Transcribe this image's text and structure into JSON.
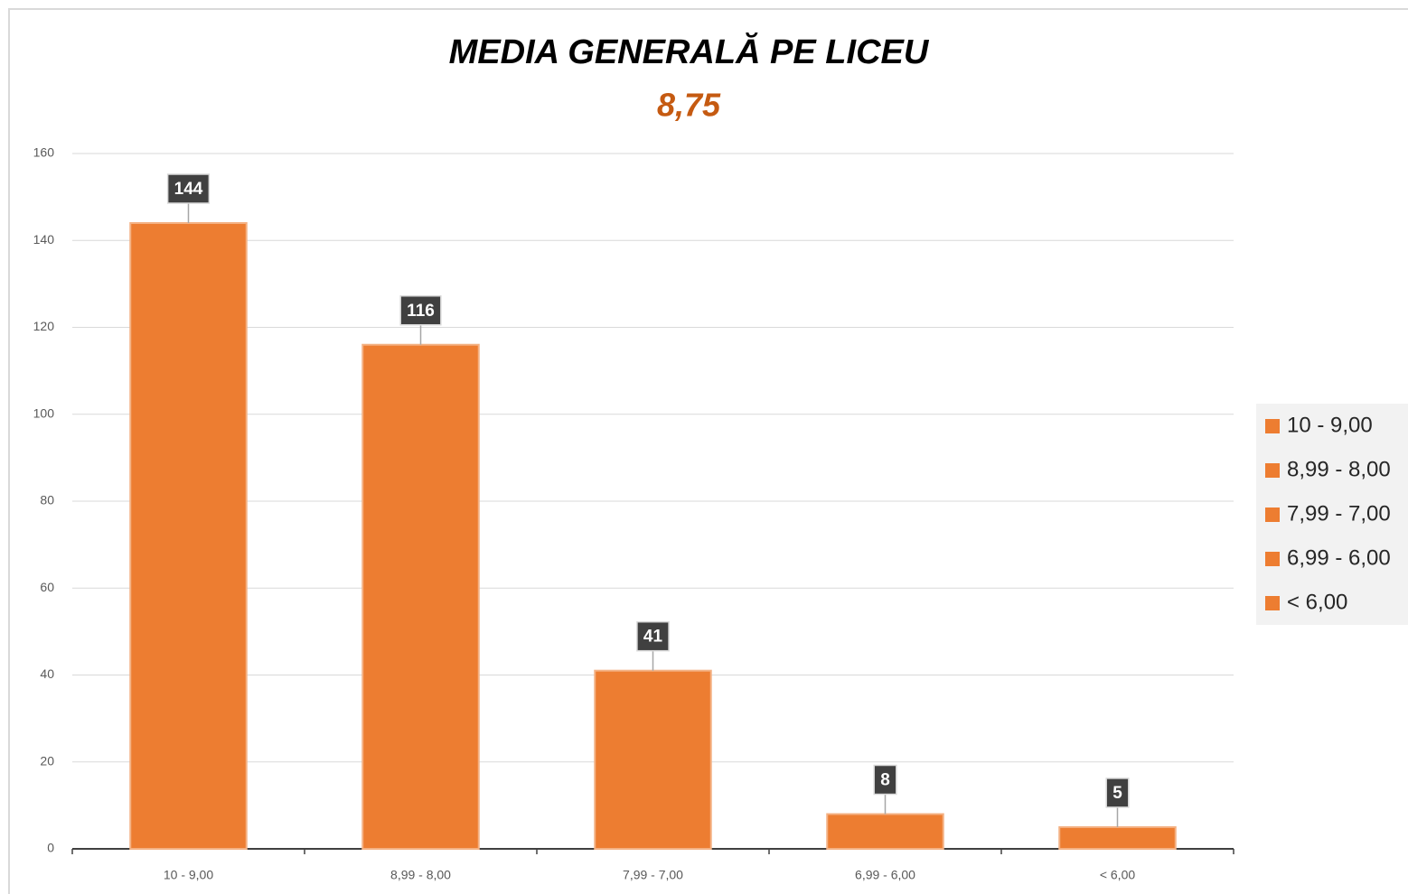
{
  "chart_data": {
    "type": "bar",
    "title": "MEDIA GENERALĂ PE LICEU",
    "subtitle": "8,75",
    "categories": [
      "10 - 9,00",
      "8,99 - 8,00",
      "7,99 - 7,00",
      "6,99 - 6,00",
      "< 6,00"
    ],
    "values": [
      144,
      116,
      41,
      8,
      5
    ],
    "color": "#ed7d31",
    "ylim": [
      0,
      160
    ],
    "yticks": [
      0,
      20,
      40,
      60,
      80,
      100,
      120,
      140,
      160
    ],
    "grid": true,
    "data_labels": true,
    "legend": "right"
  }
}
